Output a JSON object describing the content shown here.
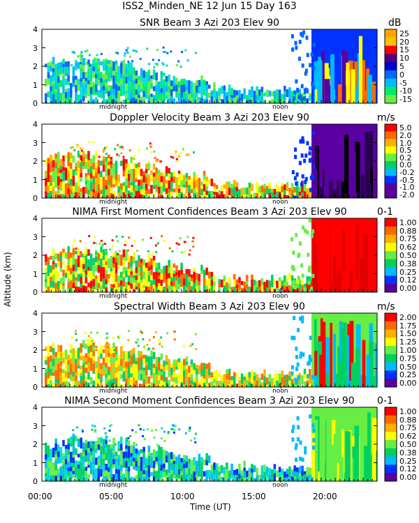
{
  "header": {
    "title": "ISS2_Minden_NE   12 Jun 15 Day 163"
  },
  "axes": {
    "ylabel": "Altitude (km)",
    "xlabel": "Time (UT)",
    "xticks": [
      "00:00",
      "05:00",
      "10:00",
      "15:00",
      "20:00"
    ],
    "tick_annotations": [
      "midnight",
      "noon"
    ]
  },
  "colors": {
    "ramp_a": [
      "#FFA500",
      "#FFC000",
      "#E00000",
      "#FF0000",
      "#50007F",
      "#7300B3",
      "#0000CC",
      "#0066FF",
      "#00BBFF",
      "#00E0D0",
      "#00EE66",
      "#66EE44"
    ],
    "ramp_b": [
      "#FF0000",
      "#FF6A00",
      "#FFB000",
      "#FFFF00",
      "#66EE44",
      "#00D060",
      "#00BBFF",
      "#0033FF",
      "#5A00A0"
    ]
  },
  "chart_data": [
    {
      "type": "heatmap",
      "title": "SNR Beam 3 Azi 203 Elev 90",
      "unit": "dB",
      "x": [
        0,
        24
      ],
      "ylim": [
        0,
        4
      ],
      "yticks": [
        "0",
        "1",
        "2",
        "3",
        "4"
      ],
      "colorbar": [
        "25",
        "20",
        "15",
        "10",
        "5",
        "0",
        "-5",
        "-10",
        "-15"
      ]
    },
    {
      "type": "heatmap",
      "title": "Doppler Velocity Beam 3 Azi 203 Elev 90",
      "unit": "m/s",
      "x": [
        0,
        24
      ],
      "ylim": [
        0,
        4
      ],
      "yticks": [
        "0",
        "1",
        "2",
        "3",
        "4"
      ],
      "colorbar": [
        "5.0",
        "2.0",
        "1.0",
        "0.5",
        "0.2",
        "0.0",
        "-0.2",
        "-0.5",
        "-1.0",
        "-2.0"
      ]
    },
    {
      "type": "heatmap",
      "title": "NIMA First Moment Confidences Beam 3 Azi 203 Elev 90",
      "unit": "0-1",
      "x": [
        0,
        24
      ],
      "ylim": [
        0,
        4
      ],
      "yticks": [
        "0",
        "1",
        "2",
        "3",
        "4"
      ],
      "colorbar": [
        "1.00",
        "0.88",
        "0.75",
        "0.62",
        "0.50",
        "0.38",
        "0.25",
        "0.12",
        "0.00"
      ]
    },
    {
      "type": "heatmap",
      "title": "Spectral Width Beam 3 Azi 203 Elev 90",
      "unit": "m/s",
      "x": [
        0,
        24
      ],
      "ylim": [
        0,
        4
      ],
      "yticks": [
        "0",
        "1",
        "2",
        "3",
        "4"
      ],
      "colorbar": [
        "2.00",
        "1.75",
        "1.50",
        "1.25",
        "1.00",
        "0.75",
        "0.50",
        "0.25",
        "0.00"
      ]
    },
    {
      "type": "heatmap",
      "title": "NIMA Second Moment Confidences Beam 3 Azi 203 Elev 90",
      "unit": "0-1",
      "x": [
        0,
        24
      ],
      "ylim": [
        0,
        4
      ],
      "yticks": [
        "0",
        "1",
        "2",
        "3",
        "4"
      ],
      "colorbar": [
        "1.00",
        "0.88",
        "0.75",
        "0.62",
        "0.50",
        "0.38",
        "0.25",
        "0.12",
        "0.00"
      ]
    }
  ]
}
